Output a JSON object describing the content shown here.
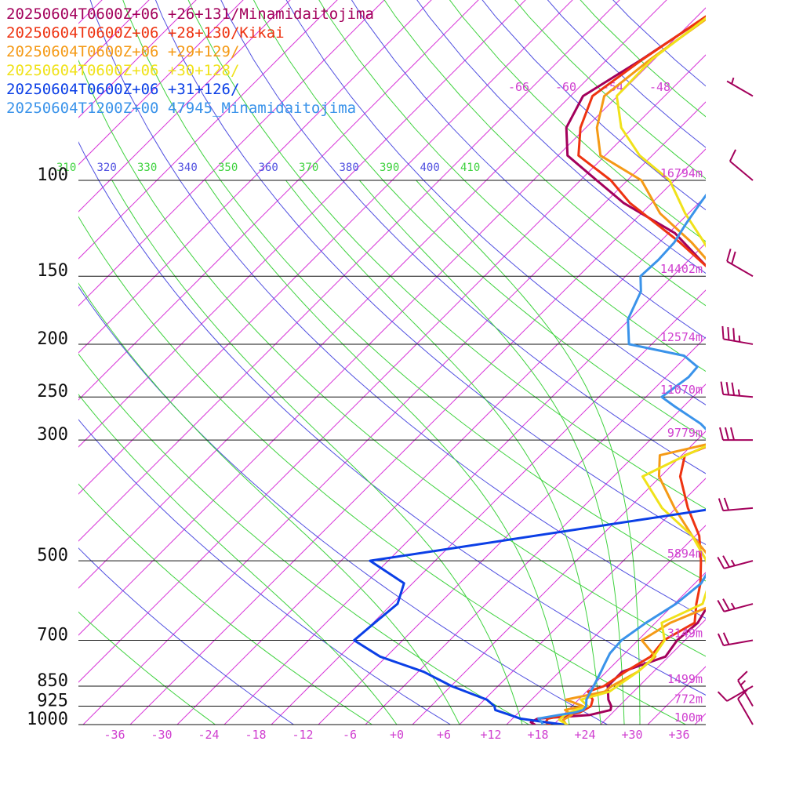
{
  "chart_data": {
    "type": "line",
    "chart_kind": "skew-T sounding",
    "legend": [
      {
        "label": "20250604T0600Z+06 +26+131/Minamidaitojima",
        "color": "#a3005b"
      },
      {
        "label": "20250604T0600Z+06 +28+130/Kikai",
        "color": "#ee3311"
      },
      {
        "label": "20250604T0600Z+06 +29+129/",
        "color": "#f59a16"
      },
      {
        "label": "20250604T0600Z+06 +30+128/",
        "color": "#f0e21a"
      },
      {
        "label": "20250604T0600Z+06 +31+126/",
        "color": "#0b3fe6"
      },
      {
        "label": "20250604T1200Z+00 47945_Minamidaitojima",
        "color": "#3a93ea"
      }
    ],
    "pressure_levels": [
      {
        "p": 100,
        "label": "100",
        "height": "16794m"
      },
      {
        "p": 150,
        "label": "150",
        "height": "14402m"
      },
      {
        "p": 200,
        "label": "200",
        "height": "12574m"
      },
      {
        "p": 250,
        "label": "250",
        "height": "11070m"
      },
      {
        "p": 300,
        "label": "300",
        "height": "9779m"
      },
      {
        "p": 500,
        "label": "500",
        "height": "5894m"
      },
      {
        "p": 700,
        "label": "700",
        "height": "3149m"
      },
      {
        "p": 850,
        "label": "850",
        "height": "1499m"
      },
      {
        "p": 925,
        "label": "925",
        "height": "772m"
      },
      {
        "p": 1000,
        "label": "1000",
        "height": "100m"
      }
    ],
    "temperature_ticks": [
      {
        "t": -36,
        "label": "-36"
      },
      {
        "t": -30,
        "label": "-30"
      },
      {
        "t": -24,
        "label": "-24"
      },
      {
        "t": -18,
        "label": "-18"
      },
      {
        "t": -12,
        "label": "-12"
      },
      {
        "t": -6,
        "label": "-6"
      },
      {
        "t": 0,
        "label": "+0"
      },
      {
        "t": 6,
        "label": "+6"
      },
      {
        "t": 12,
        "label": "+12"
      },
      {
        "t": 18,
        "label": "+18"
      },
      {
        "t": 24,
        "label": "+24"
      },
      {
        "t": 30,
        "label": "+30"
      },
      {
        "t": 36,
        "label": "+36"
      }
    ],
    "upper_temperature_labels": [
      "-66",
      "-60",
      "-54",
      "-48"
    ],
    "theta_labels": [
      {
        "label": "310",
        "color": "#3fd23f"
      },
      {
        "label": "320",
        "color": "#5050e0"
      },
      {
        "label": "330",
        "color": "#3fd23f"
      },
      {
        "label": "340",
        "color": "#5050e0"
      },
      {
        "label": "350",
        "color": "#3fd23f"
      },
      {
        "label": "360",
        "color": "#5050e0"
      },
      {
        "label": "370",
        "color": "#3fd23f"
      },
      {
        "label": "380",
        "color": "#5050e0"
      },
      {
        "label": "390",
        "color": "#3fd23f"
      },
      {
        "label": "400",
        "color": "#5050e0"
      },
      {
        "label": "410",
        "color": "#3fd23f"
      }
    ],
    "temperature_range": [
      -40,
      40
    ],
    "pressure_range": [
      1000,
      100
    ],
    "skew": "45 degrees",
    "colors": {
      "isotherm": "#d838d8",
      "dry_adiabat": "#5050e0",
      "moist_adiabat": "#3fd23f",
      "isobar": "#111111",
      "label": "#d040d0",
      "wind_barb": "#a3005b"
    },
    "moist_adiabat_surface_temps": [
      0,
      8,
      16,
      22,
      26,
      29,
      31
    ],
    "profiles": [
      {
        "color": "#a3005b",
        "points": [
          [
            1000,
            17.6
          ],
          [
            990,
            16.8
          ],
          [
            975,
            17.2
          ],
          [
            960,
            23.4
          ],
          [
            940,
            25.4
          ],
          [
            925,
            25.0
          ],
          [
            900,
            23.8
          ],
          [
            850,
            22.0
          ],
          [
            800,
            22.0
          ],
          [
            750,
            25.6
          ],
          [
            700,
            25.0
          ],
          [
            650,
            25.4
          ],
          [
            600,
            24.4
          ],
          [
            550,
            22.1
          ],
          [
            500,
            20.6
          ],
          [
            450,
            17.9
          ],
          [
            400,
            14.8
          ],
          [
            350,
            11.2
          ],
          [
            300,
            6.5
          ],
          [
            280,
            4.3
          ],
          [
            250,
            0.9
          ],
          [
            220,
            -3.2
          ],
          [
            200,
            -6.1
          ],
          [
            180,
            -9.4
          ],
          [
            160,
            -13.6
          ],
          [
            150,
            -16.5
          ],
          [
            125,
            -27.2
          ],
          [
            110,
            -37.6
          ],
          [
            100,
            -43.9
          ],
          [
            90,
            -50.8
          ],
          [
            80,
            -54.5
          ],
          [
            70,
            -56.4
          ],
          [
            60,
            -53.6
          ],
          [
            50,
            -50.8
          ],
          [
            42,
            -45.7
          ]
        ]
      },
      {
        "color": "#ee3311",
        "points": [
          [
            1000,
            19.5
          ],
          [
            990,
            18.7
          ],
          [
            975,
            18.5
          ],
          [
            950,
            21.8
          ],
          [
            925,
            22.4
          ],
          [
            900,
            21.8
          ],
          [
            870,
            20.2
          ],
          [
            850,
            21.5
          ],
          [
            800,
            22.4
          ],
          [
            750,
            23.7
          ],
          [
            700,
            23.3
          ],
          [
            650,
            25.0
          ],
          [
            600,
            22.8
          ],
          [
            550,
            20.7
          ],
          [
            500,
            17.9
          ],
          [
            450,
            14.5
          ],
          [
            400,
            9.5
          ],
          [
            350,
            4.5
          ],
          [
            320,
            2.4
          ],
          [
            300,
            5.3
          ],
          [
            260,
            2.1
          ],
          [
            250,
            1.0
          ],
          [
            220,
            -3.2
          ],
          [
            200,
            -6.1
          ],
          [
            180,
            -9.1
          ],
          [
            160,
            -13.3
          ],
          [
            150,
            -16.3
          ],
          [
            130,
            -25.4
          ],
          [
            110,
            -36.8
          ],
          [
            100,
            -42.1
          ],
          [
            90,
            -49.4
          ],
          [
            80,
            -52.7
          ],
          [
            70,
            -55.2
          ],
          [
            60,
            -53.5
          ],
          [
            50,
            -50.9
          ],
          [
            43,
            -46.2
          ]
        ]
      },
      {
        "color": "#f59a16",
        "points": [
          [
            1000,
            21.6
          ],
          [
            980,
            20.6
          ],
          [
            960,
            21.1
          ],
          [
            940,
            19.6
          ],
          [
            925,
            21.4
          ],
          [
            900,
            18.4
          ],
          [
            870,
            22.3
          ],
          [
            850,
            22.5
          ],
          [
            800,
            24.0
          ],
          [
            750,
            24.3
          ],
          [
            700,
            20.5
          ],
          [
            650,
            21.9
          ],
          [
            600,
            25.3
          ],
          [
            550,
            24.5
          ],
          [
            500,
            19.4
          ],
          [
            450,
            13.6
          ],
          [
            400,
            7.8
          ],
          [
            350,
            1.8
          ],
          [
            320,
            -0.8
          ],
          [
            300,
            5.6
          ],
          [
            260,
            2.6
          ],
          [
            250,
            1.6
          ],
          [
            220,
            -2.5
          ],
          [
            200,
            -5.4
          ],
          [
            180,
            -8.6
          ],
          [
            160,
            -12.7
          ],
          [
            150,
            -15.8
          ],
          [
            130,
            -23.9
          ],
          [
            115,
            -31.6
          ],
          [
            100,
            -38.2
          ],
          [
            90,
            -46.6
          ],
          [
            80,
            -50.6
          ],
          [
            70,
            -53.7
          ],
          [
            60,
            -52.5
          ],
          [
            50,
            -50.4
          ],
          [
            43,
            -46.0
          ]
        ]
      },
      {
        "color": "#f0e21a",
        "points": [
          [
            1000,
            21.7
          ],
          [
            980,
            20.1
          ],
          [
            960,
            20.2
          ],
          [
            940,
            20.9
          ],
          [
            925,
            22.0
          ],
          [
            900,
            20.3
          ],
          [
            870,
            22.9
          ],
          [
            850,
            23.2
          ],
          [
            800,
            24.0
          ],
          [
            760,
            24.2
          ],
          [
            700,
            23.4
          ],
          [
            650,
            20.8
          ],
          [
            600,
            23.6
          ],
          [
            550,
            21.8
          ],
          [
            500,
            18.6
          ],
          [
            450,
            13.6
          ],
          [
            400,
            6.2
          ],
          [
            350,
            -0.3
          ],
          [
            320,
            2.5
          ],
          [
            300,
            4.9
          ],
          [
            260,
            2.3
          ],
          [
            250,
            1.4
          ],
          [
            220,
            -2.9
          ],
          [
            200,
            -5.8
          ],
          [
            180,
            -8.9
          ],
          [
            160,
            -12.9
          ],
          [
            150,
            -15.6
          ],
          [
            130,
            -22.3
          ],
          [
            115,
            -28.4
          ],
          [
            100,
            -34.6
          ],
          [
            90,
            -41.6
          ],
          [
            80,
            -47.5
          ],
          [
            70,
            -52.1
          ],
          [
            60,
            -52.3
          ],
          [
            50,
            -50.6
          ],
          [
            43,
            -47.0
          ]
        ]
      },
      {
        "color": "#0b3fe6",
        "points": [
          [
            1000,
            21.2
          ],
          [
            990,
            18.7
          ],
          [
            975,
            15.0
          ],
          [
            960,
            13.2
          ],
          [
            940,
            10.7
          ],
          [
            925,
            10.1
          ],
          [
            900,
            8.3
          ],
          [
            850,
            2.1
          ],
          [
            800,
            -3.3
          ],
          [
            750,
            -10.8
          ],
          [
            700,
            -16.2
          ],
          [
            650,
            -15.8
          ],
          [
            600,
            -15.3
          ],
          [
            550,
            -17.1
          ],
          [
            500,
            -24.3
          ],
          [
            400,
            13.4
          ],
          [
            350,
            14.6
          ],
          [
            300,
            15.0
          ],
          [
            250,
            8.7
          ],
          [
            200,
            1.0
          ],
          [
            150,
            -9.3
          ],
          [
            130,
            -14.6
          ],
          [
            110,
            -20.8
          ],
          [
            100,
            -23.8
          ],
          [
            90,
            -29.0
          ],
          [
            80,
            -34.8
          ],
          [
            70,
            -38.6
          ],
          [
            60,
            -40.1
          ],
          [
            50,
            -43.5
          ],
          [
            42,
            -47.5
          ]
        ]
      },
      {
        "color": "#3a93ea",
        "points": [
          [
            1000,
            18.6
          ],
          [
            990,
            18.2
          ],
          [
            975,
            17.3
          ],
          [
            960,
            19.5
          ],
          [
            950,
            21.2
          ],
          [
            940,
            21.9
          ],
          [
            925,
            21.8
          ],
          [
            900,
            21.0
          ],
          [
            850,
            20.2
          ],
          [
            800,
            19.3
          ],
          [
            775,
            18.8
          ],
          [
            740,
            18.1
          ],
          [
            700,
            17.9
          ],
          [
            650,
            18.8
          ],
          [
            600,
            20.2
          ],
          [
            550,
            20.8
          ],
          [
            500,
            19.6
          ],
          [
            450,
            17.6
          ],
          [
            420,
            13.7
          ],
          [
            400,
            12.2
          ],
          [
            380,
            10.9
          ],
          [
            370,
            11.0
          ],
          [
            360,
            13.7
          ],
          [
            350,
            14.2
          ],
          [
            345,
            22.7
          ],
          [
            340,
            13.0
          ],
          [
            330,
            11.1
          ],
          [
            320,
            6.4
          ],
          [
            310,
            5.0
          ],
          [
            300,
            4.5
          ],
          [
            280,
            0.4
          ],
          [
            260,
            -5.2
          ],
          [
            250,
            -8.0
          ],
          [
            230,
            -7.1
          ],
          [
            220,
            -7.3
          ],
          [
            210,
            -10.4
          ],
          [
            200,
            -18.9
          ],
          [
            180,
            -22.2
          ],
          [
            160,
            -24.1
          ],
          [
            150,
            -26.1
          ],
          [
            140,
            -25.9
          ],
          [
            130,
            -26.1
          ],
          [
            120,
            -27.0
          ],
          [
            110,
            -27.8
          ],
          [
            100,
            -28.6
          ]
        ]
      }
    ],
    "wind_barbs": [
      {
        "p": 1000,
        "dir": 330,
        "kt": 10
      },
      {
        "p": 925,
        "dir": 330,
        "kt": 15
      },
      {
        "p": 850,
        "dir": 240,
        "kt": 10
      },
      {
        "p": 700,
        "dir": 260,
        "kt": 20
      },
      {
        "p": 600,
        "dir": 255,
        "kt": 25
      },
      {
        "p": 500,
        "dir": 255,
        "kt": 25
      },
      {
        "p": 400,
        "dir": 265,
        "kt": 20
      },
      {
        "p": 300,
        "dir": 270,
        "kt": 30
      },
      {
        "p": 250,
        "dir": 275,
        "kt": 35
      },
      {
        "p": 200,
        "dir": 280,
        "kt": 35
      },
      {
        "p": 150,
        "dir": 300,
        "kt": 20
      },
      {
        "p": 100,
        "dir": 310,
        "kt": 10
      },
      {
        "p": 70,
        "dir": 300,
        "kt": 5
      },
      {
        "p": 40,
        "dir": 290,
        "kt": 10
      }
    ]
  }
}
